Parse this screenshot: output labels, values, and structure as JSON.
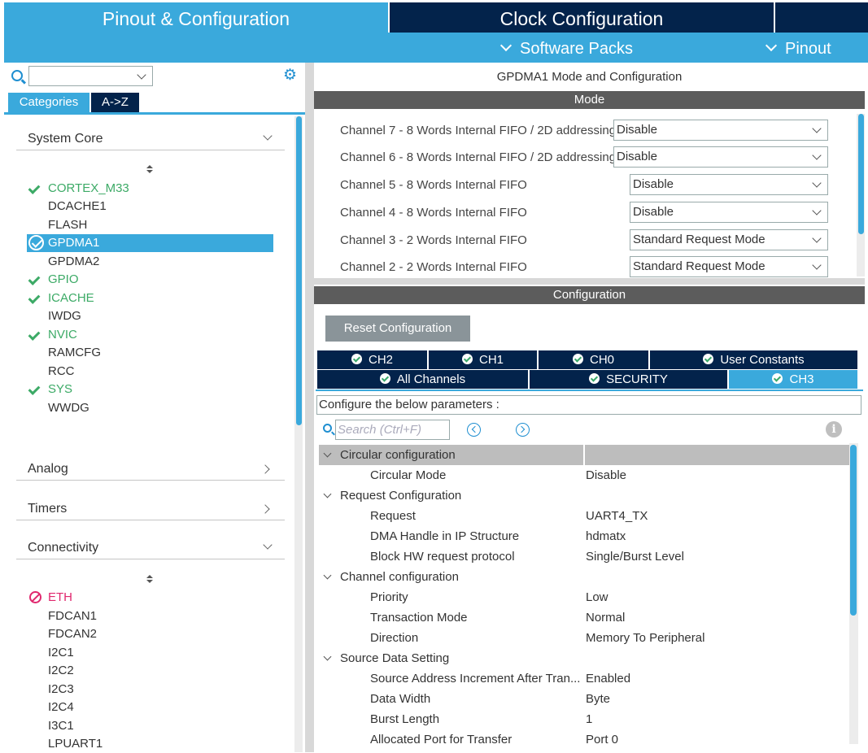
{
  "top_tabs": {
    "pinout": "Pinout & Configuration",
    "clock": "Clock Configuration"
  },
  "sub_menu": {
    "software_packs": "Software Packs",
    "pinout": "Pinout"
  },
  "left": {
    "search_value": "",
    "tabs": {
      "categories": "Categories",
      "az": "A->Z"
    },
    "groups": {
      "system_core": "System Core",
      "analog": "Analog",
      "timers": "Timers",
      "connectivity": "Connectivity"
    },
    "system_core_items": [
      {
        "label": "CORTEX_M33",
        "state": "ok"
      },
      {
        "label": "DCACHE1",
        "state": "none"
      },
      {
        "label": "FLASH",
        "state": "none"
      },
      {
        "label": "GPDMA1",
        "state": "selected"
      },
      {
        "label": "GPDMA2",
        "state": "none"
      },
      {
        "label": "GPIO",
        "state": "ok"
      },
      {
        "label": "ICACHE",
        "state": "ok"
      },
      {
        "label": "IWDG",
        "state": "none"
      },
      {
        "label": "NVIC",
        "state": "ok"
      },
      {
        "label": "RAMCFG",
        "state": "none"
      },
      {
        "label": "RCC",
        "state": "none"
      },
      {
        "label": "SYS",
        "state": "ok"
      },
      {
        "label": "WWDG",
        "state": "none"
      }
    ],
    "connectivity_items": [
      {
        "label": "ETH",
        "state": "error"
      },
      {
        "label": "FDCAN1",
        "state": "none"
      },
      {
        "label": "FDCAN2",
        "state": "none"
      },
      {
        "label": "I2C1",
        "state": "none"
      },
      {
        "label": "I2C2",
        "state": "none"
      },
      {
        "label": "I2C3",
        "state": "none"
      },
      {
        "label": "I2C4",
        "state": "none"
      },
      {
        "label": "I3C1",
        "state": "none"
      },
      {
        "label": "LPUART1",
        "state": "none"
      }
    ]
  },
  "right": {
    "title": "GPDMA1 Mode and Configuration",
    "mode_header": "Mode",
    "channels": [
      {
        "label": "Channel 7  - 8 Words Internal FIFO / 2D addressing",
        "value": "Disable"
      },
      {
        "label": "Channel 6  - 8 Words Internal FIFO / 2D addressing",
        "value": "Disable"
      },
      {
        "label": "Channel 5  - 8 Words Internal FIFO",
        "value": "Disable"
      },
      {
        "label": "Channel 4  - 8 Words Internal FIFO",
        "value": "Disable"
      },
      {
        "label": "Channel 3  - 2 Words Internal FIFO",
        "value": "Standard Request Mode"
      },
      {
        "label": "Channel 2  - 2 Words Internal FIFO",
        "value": "Standard Request Mode"
      }
    ],
    "config_header": "Configuration",
    "reset_button": "Reset Configuration",
    "tabs_row1": [
      "CH2",
      "CH1",
      "CH0",
      "User Constants"
    ],
    "tabs_row2": [
      "All Channels",
      "SECURITY",
      "CH3"
    ],
    "active_tab": "CH3",
    "configure_text": "Configure the below parameters :",
    "search_placeholder": "Search (Ctrl+F)",
    "info_glyph": "i",
    "params": [
      {
        "type": "group",
        "label": "Circular configuration",
        "selected": true
      },
      {
        "type": "item",
        "label": "Circular Mode",
        "value": "Disable"
      },
      {
        "type": "group",
        "label": "Request Configuration"
      },
      {
        "type": "item",
        "label": "Request",
        "value": "UART4_TX"
      },
      {
        "type": "item",
        "label": "DMA Handle in IP Structure",
        "value": "hdmatx"
      },
      {
        "type": "item",
        "label": "Block HW request protocol",
        "value": "Single/Burst Level"
      },
      {
        "type": "group",
        "label": "Channel configuration"
      },
      {
        "type": "item",
        "label": "Priority",
        "value": "Low"
      },
      {
        "type": "item",
        "label": "Transaction Mode",
        "value": "Normal"
      },
      {
        "type": "item",
        "label": "Direction",
        "value": "Memory To Peripheral"
      },
      {
        "type": "group",
        "label": "Source Data Setting"
      },
      {
        "type": "item",
        "label": "Source Address Increment After Tran...",
        "value": "Enabled"
      },
      {
        "type": "item",
        "label": "Data Width",
        "value": "Byte"
      },
      {
        "type": "item",
        "label": "Burst Length",
        "value": "1"
      },
      {
        "type": "item",
        "label": "Allocated Port for Transfer",
        "value": "Port 0"
      }
    ]
  },
  "colors": {
    "accent": "#3aa9dc",
    "navy": "#03234b",
    "ok": "#3caa66",
    "error": "#e0286e",
    "header_gray": "#5c5c5c"
  }
}
